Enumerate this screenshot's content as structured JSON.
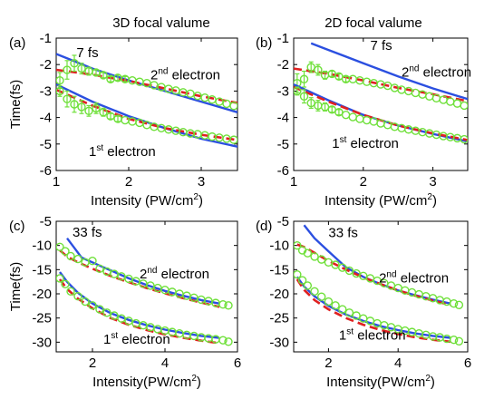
{
  "column_titles": [
    "3D focal valume",
    "2D focal valume"
  ],
  "colors": {
    "theory": "#2b4fe0",
    "fit": "#e02020",
    "data": "#6fe03a"
  },
  "chart_data": [
    {
      "type": "line",
      "panel": "(a)",
      "pulse": "7 fs",
      "ylabel": "Time(fs)",
      "xlabel": "Intensity (PW/cm",
      "xlabel_sup": "2",
      "xlabel_end": ")",
      "xlim": [
        1,
        3.5
      ],
      "ylim": [
        -6,
        -1
      ],
      "xticks": [
        1,
        2,
        3
      ],
      "yticks": [
        -1,
        -2,
        -3,
        -4,
        -5,
        -6
      ],
      "annotations": [
        {
          "pre": "2",
          "sup": "nd",
          "post": " electron",
          "x": 2.3,
          "y": -2.55
        },
        {
          "pre": "1",
          "sup": "st",
          "post": " electron",
          "x": 1.45,
          "y": -5.45
        }
      ],
      "pulse_pos": {
        "x": 1.28,
        "y": -1.72
      },
      "series": [
        {
          "kind": "solid",
          "x": [
            1,
            1.2,
            1.5,
            2,
            2.5,
            3,
            3.5
          ],
          "y": [
            -1.6,
            -1.82,
            -2.15,
            -2.6,
            -3.0,
            -3.4,
            -3.8
          ]
        },
        {
          "kind": "dashed",
          "x": [
            1,
            1.5,
            2,
            2.5,
            3,
            3.5
          ],
          "y": [
            -2.2,
            -2.38,
            -2.62,
            -2.9,
            -3.2,
            -3.45
          ]
        },
        {
          "kind": "markers",
          "x": [
            1.05,
            1.15,
            1.25,
            1.35,
            1.45,
            1.55,
            1.65,
            1.75,
            1.85,
            1.95,
            2.05,
            2.15,
            2.25,
            2.35,
            2.45,
            2.55,
            2.65,
            2.75,
            2.85,
            2.95,
            3.05,
            3.15,
            3.25,
            3.35,
            3.45
          ],
          "y": [
            -2.6,
            -2.2,
            -1.95,
            -2.15,
            -2.25,
            -2.3,
            -2.4,
            -2.55,
            -2.5,
            -2.55,
            -2.6,
            -2.65,
            -2.7,
            -2.78,
            -2.85,
            -2.92,
            -2.98,
            -3.05,
            -3.1,
            -3.18,
            -3.25,
            -3.32,
            -3.4,
            -3.48,
            -3.56
          ],
          "err": [
            0.3,
            0.35,
            0.3,
            0.2,
            0.15,
            0.1,
            0.1,
            0.1,
            0.1,
            0.1,
            0,
            0,
            0,
            0,
            0,
            0,
            0,
            0,
            0,
            0,
            0,
            0,
            0,
            0,
            0
          ]
        },
        {
          "kind": "solid",
          "x": [
            1,
            1.5,
            2,
            2.5,
            3,
            3.5
          ],
          "y": [
            -2.75,
            -3.4,
            -3.95,
            -4.4,
            -4.8,
            -5.1
          ]
        },
        {
          "kind": "dashed",
          "x": [
            1,
            1.5,
            2,
            2.5,
            3,
            3.5
          ],
          "y": [
            -2.95,
            -3.55,
            -4.05,
            -4.4,
            -4.65,
            -4.85
          ]
        },
        {
          "kind": "markers",
          "x": [
            1.05,
            1.15,
            1.25,
            1.35,
            1.45,
            1.55,
            1.65,
            1.75,
            1.85,
            1.95,
            2.05,
            2.15,
            2.25,
            2.35,
            2.45,
            2.55,
            2.65,
            2.75,
            2.85,
            2.95,
            3.05,
            3.15,
            3.25,
            3.35,
            3.45
          ],
          "y": [
            -3.0,
            -3.3,
            -3.5,
            -3.6,
            -3.75,
            -3.65,
            -3.8,
            -3.95,
            -4.05,
            -4.1,
            -4.15,
            -4.2,
            -4.28,
            -4.35,
            -4.4,
            -4.45,
            -4.5,
            -4.55,
            -4.6,
            -4.63,
            -4.67,
            -4.72,
            -4.76,
            -4.8,
            -4.84
          ],
          "err": [
            0.2,
            0.3,
            0.3,
            0.25,
            0.2,
            0.2,
            0.15,
            0.1,
            0.1,
            0,
            0,
            0,
            0,
            0,
            0,
            0,
            0,
            0,
            0,
            0,
            0,
            0,
            0,
            0,
            0
          ]
        }
      ]
    },
    {
      "type": "line",
      "panel": "(b)",
      "pulse": "7 fs",
      "ylabel": "",
      "xlabel": "Intensity (PW/cm",
      "xlabel_sup": "2",
      "xlabel_end": ")",
      "xlim": [
        1,
        3.5
      ],
      "ylim": [
        -6,
        -1
      ],
      "xticks": [
        1,
        2,
        3
      ],
      "yticks": [
        -1,
        -2,
        -3,
        -4,
        -5,
        -6
      ],
      "annotations": [
        {
          "pre": "2",
          "sup": "nd",
          "post": " electron",
          "x": 2.55,
          "y": -2.45
        },
        {
          "pre": "1",
          "sup": "st",
          "post": " electron",
          "x": 1.55,
          "y": -5.15
        }
      ],
      "pulse_pos": {
        "x": 2.1,
        "y": -1.45
      },
      "series": [
        {
          "kind": "solid",
          "x": [
            1.25,
            1.5,
            2,
            2.5,
            3,
            3.5
          ],
          "y": [
            -1.2,
            -1.45,
            -1.95,
            -2.45,
            -2.9,
            -3.3
          ]
        },
        {
          "kind": "dashed",
          "x": [
            1,
            1.5,
            2,
            2.5,
            3,
            3.5
          ],
          "y": [
            -2.15,
            -2.35,
            -2.6,
            -2.88,
            -3.12,
            -3.38
          ]
        },
        {
          "kind": "markers",
          "x": [
            1.05,
            1.15,
            1.25,
            1.35,
            1.45,
            1.55,
            1.65,
            1.75,
            1.85,
            1.95,
            2.05,
            2.15,
            2.25,
            2.35,
            2.45,
            2.55,
            2.65,
            2.75,
            2.85,
            2.95,
            3.05,
            3.15,
            3.25,
            3.35,
            3.45
          ],
          "y": [
            -2.7,
            -2.55,
            -2.1,
            -2.2,
            -2.4,
            -2.35,
            -2.45,
            -2.55,
            -2.55,
            -2.6,
            -2.65,
            -2.7,
            -2.75,
            -2.8,
            -2.88,
            -2.95,
            -3.0,
            -3.07,
            -3.13,
            -3.2,
            -3.27,
            -3.33,
            -3.4,
            -3.47,
            -3.55
          ],
          "err": [
            0.35,
            0.3,
            0.2,
            0.2,
            0.15,
            0.1,
            0.1,
            0.1,
            0,
            0,
            0,
            0,
            0,
            0,
            0,
            0,
            0,
            0,
            0,
            0,
            0,
            0,
            0,
            0,
            0
          ]
        },
        {
          "kind": "solid",
          "x": [
            1,
            1.5,
            2,
            2.5,
            3,
            3.5
          ],
          "y": [
            -2.75,
            -3.35,
            -3.9,
            -4.3,
            -4.62,
            -4.9
          ]
        },
        {
          "kind": "dashed",
          "x": [
            1,
            1.5,
            2,
            2.5,
            3,
            3.5
          ],
          "y": [
            -2.85,
            -3.4,
            -3.9,
            -4.3,
            -4.6,
            -4.85
          ]
        },
        {
          "kind": "markers",
          "x": [
            1.05,
            1.15,
            1.25,
            1.35,
            1.45,
            1.55,
            1.65,
            1.75,
            1.85,
            1.95,
            2.05,
            2.15,
            2.25,
            2.35,
            2.45,
            2.55,
            2.65,
            2.75,
            2.85,
            2.95,
            3.05,
            3.15,
            3.25,
            3.35,
            3.45
          ],
          "y": [
            -3.0,
            -3.2,
            -3.45,
            -3.55,
            -3.6,
            -3.7,
            -3.8,
            -3.9,
            -3.98,
            -4.05,
            -4.1,
            -4.15,
            -4.22,
            -4.28,
            -4.35,
            -4.4,
            -4.45,
            -4.5,
            -4.55,
            -4.6,
            -4.65,
            -4.7,
            -4.74,
            -4.78,
            -4.82
          ],
          "err": [
            0.15,
            0.25,
            0.2,
            0.2,
            0.15,
            0.1,
            0.1,
            0,
            0,
            0,
            0,
            0,
            0,
            0,
            0,
            0,
            0,
            0,
            0,
            0,
            0,
            0,
            0,
            0,
            0
          ]
        }
      ]
    },
    {
      "type": "line",
      "panel": "(c)",
      "pulse": "33 fs",
      "ylabel": "Time(fs)",
      "xlabel": "Intensity(PW/cm",
      "xlabel_sup": "2",
      "xlabel_end": ")",
      "xlim": [
        1,
        6
      ],
      "ylim": [
        -32,
        -5
      ],
      "xticks": [
        2,
        4,
        6
      ],
      "yticks": [
        -5,
        -10,
        -15,
        -20,
        -25,
        -30
      ],
      "annotations": [
        {
          "pre": "2",
          "sup": "nd",
          "post": " electron",
          "x": 3.3,
          "y": -16.8
        },
        {
          "pre": "1",
          "sup": "st",
          "post": " electron",
          "x": 2.3,
          "y": -30.3
        }
      ],
      "pulse_pos": {
        "x": 1.45,
        "y": -8.2
      },
      "series": [
        {
          "kind": "solid",
          "x": [
            1.3,
            1.5,
            1.7,
            2,
            2.3,
            2.7,
            3,
            3.5,
            4,
            4.5,
            5,
            5.5
          ],
          "y": [
            -8.5,
            -10.5,
            -12.5,
            -13.5,
            -14.5,
            -15.8,
            -16.8,
            -18.2,
            -19.4,
            -20.4,
            -21.3,
            -22.0
          ]
        },
        {
          "kind": "dashed",
          "x": [
            1.1,
            1.3,
            1.6,
            2,
            2.5,
            3,
            3.5,
            4,
            4.5,
            5,
            5.5
          ],
          "y": [
            -11,
            -12.3,
            -13.5,
            -14.8,
            -16.3,
            -17.6,
            -18.8,
            -19.9,
            -20.9,
            -21.8,
            -22.7
          ]
        },
        {
          "kind": "markers",
          "x": [
            1.1,
            1.25,
            1.4,
            1.6,
            1.8,
            2.0,
            2.2,
            2.4,
            2.6,
            2.8,
            3.0,
            3.2,
            3.4,
            3.6,
            3.8,
            4.0,
            4.2,
            4.4,
            4.6,
            4.8,
            5.0,
            5.2,
            5.4,
            5.6,
            5.75
          ],
          "y": [
            -10.3,
            -11.2,
            -12.2,
            -12.8,
            -13.5,
            -13.2,
            -14.8,
            -15.4,
            -15.9,
            -16.4,
            -16.9,
            -17.4,
            -17.9,
            -18.3,
            -18.8,
            -19.2,
            -19.6,
            -20.0,
            -20.4,
            -20.8,
            -21.2,
            -21.5,
            -21.9,
            -22.2,
            -22.4
          ],
          "err": []
        },
        {
          "kind": "solid",
          "x": [
            1.1,
            1.3,
            1.6,
            2,
            2.5,
            3,
            3.5,
            4,
            4.5,
            5,
            5.5
          ],
          "y": [
            -15.5,
            -17.5,
            -19.8,
            -22.0,
            -24.0,
            -25.4,
            -26.5,
            -27.4,
            -28.1,
            -28.7,
            -29.1
          ]
        },
        {
          "kind": "dashed",
          "x": [
            1.1,
            1.3,
            1.6,
            2,
            2.5,
            3,
            3.5,
            4,
            4.5,
            5,
            5.5
          ],
          "y": [
            -17.0,
            -19.0,
            -21.0,
            -23.0,
            -25.0,
            -26.4,
            -27.5,
            -28.4,
            -29.1,
            -29.7,
            -30.2
          ]
        },
        {
          "kind": "markers",
          "x": [
            1.1,
            1.25,
            1.4,
            1.6,
            1.8,
            2.0,
            2.2,
            2.4,
            2.6,
            2.8,
            3.0,
            3.2,
            3.4,
            3.6,
            3.8,
            4.0,
            4.2,
            4.4,
            4.6,
            4.8,
            5.0,
            5.2,
            5.4,
            5.6,
            5.75
          ],
          "y": [
            -16.8,
            -18.0,
            -19.5,
            -20.5,
            -21.6,
            -22.4,
            -23.2,
            -23.9,
            -24.5,
            -25.1,
            -25.6,
            -26.1,
            -26.5,
            -26.9,
            -27.3,
            -27.6,
            -27.9,
            -28.2,
            -28.5,
            -28.7,
            -29.0,
            -29.2,
            -29.4,
            -29.6,
            -29.9
          ],
          "err": []
        }
      ]
    },
    {
      "type": "line",
      "panel": "(d)",
      "pulse": "33 fs",
      "ylabel": "",
      "xlabel": "Intensity(PW/cm",
      "xlabel_sup": "2",
      "xlabel_end": ")",
      "xlim": [
        1,
        6
      ],
      "ylim": [
        -32,
        -5
      ],
      "xticks": [
        2,
        4,
        6
      ],
      "yticks": [
        -5,
        -10,
        -15,
        -20,
        -25,
        -30
      ],
      "annotations": [
        {
          "pre": "2",
          "sup": "nd",
          "post": " electron",
          "x": 3.45,
          "y": -17.7
        },
        {
          "pre": "1",
          "sup": "st",
          "post": " electron",
          "x": 2.3,
          "y": -29.5
        }
      ],
      "pulse_pos": {
        "x": 2.0,
        "y": -8.3
      },
      "series": [
        {
          "kind": "solid",
          "x": [
            1.3,
            1.6,
            2,
            2.5,
            3,
            3.5,
            4,
            4.5,
            5,
            5.5
          ],
          "y": [
            -5.8,
            -8.5,
            -11.2,
            -14.5,
            -16.5,
            -18.0,
            -19.3,
            -20.3,
            -21.2,
            -22.0
          ]
        },
        {
          "kind": "dashed",
          "x": [
            1.1,
            1.3,
            1.6,
            2,
            2.5,
            3,
            3.5,
            4,
            4.5,
            5,
            5.5
          ],
          "y": [
            -9.8,
            -10.3,
            -11.5,
            -13.2,
            -15.0,
            -16.6,
            -18.0,
            -19.3,
            -20.4,
            -21.4,
            -22.3
          ]
        },
        {
          "kind": "markers",
          "x": [
            1.1,
            1.25,
            1.4,
            1.6,
            1.8,
            2.0,
            2.2,
            2.4,
            2.6,
            2.8,
            3.0,
            3.2,
            3.4,
            3.6,
            3.8,
            4.0,
            4.2,
            4.4,
            4.6,
            4.8,
            5.0,
            5.2,
            5.4,
            5.6,
            5.75
          ],
          "y": [
            -10.0,
            -11.0,
            -11.6,
            -12.3,
            -12.9,
            -13.5,
            -14.0,
            -14.6,
            -15.2,
            -15.8,
            -16.3,
            -16.8,
            -17.3,
            -17.8,
            -18.3,
            -18.8,
            -19.3,
            -19.7,
            -20.1,
            -20.5,
            -20.9,
            -21.3,
            -21.6,
            -22.0,
            -22.3
          ],
          "err": []
        },
        {
          "kind": "solid",
          "x": [
            1.1,
            1.3,
            1.6,
            2,
            2.5,
            3,
            3.5,
            4,
            4.5,
            5,
            5.5
          ],
          "y": [
            -16.5,
            -18.5,
            -20.5,
            -22.5,
            -24.3,
            -25.6,
            -26.7,
            -27.5,
            -28.2,
            -28.7,
            -29.1
          ]
        },
        {
          "kind": "dashed",
          "x": [
            1.1,
            1.3,
            1.6,
            2,
            2.5,
            3,
            3.5,
            4,
            4.5,
            5,
            5.5
          ],
          "y": [
            -17.0,
            -19.2,
            -21.3,
            -23.2,
            -25.0,
            -26.4,
            -27.5,
            -28.3,
            -29.0,
            -29.5,
            -29.9
          ]
        },
        {
          "kind": "markers",
          "x": [
            1.1,
            1.25,
            1.4,
            1.6,
            1.8,
            2.0,
            2.2,
            2.4,
            2.6,
            2.8,
            3.0,
            3.2,
            3.4,
            3.6,
            3.8,
            4.0,
            4.2,
            4.4,
            4.6,
            4.8,
            5.0,
            5.2,
            5.4,
            5.6,
            5.75
          ],
          "y": [
            -16.0,
            -17.2,
            -18.3,
            -19.5,
            -20.6,
            -21.6,
            -22.4,
            -23.2,
            -23.9,
            -24.5,
            -25.1,
            -25.6,
            -26.1,
            -26.5,
            -26.9,
            -27.3,
            -27.6,
            -27.9,
            -28.2,
            -28.5,
            -28.8,
            -29.0,
            -29.3,
            -29.5,
            -29.8
          ],
          "err": []
        }
      ]
    }
  ]
}
